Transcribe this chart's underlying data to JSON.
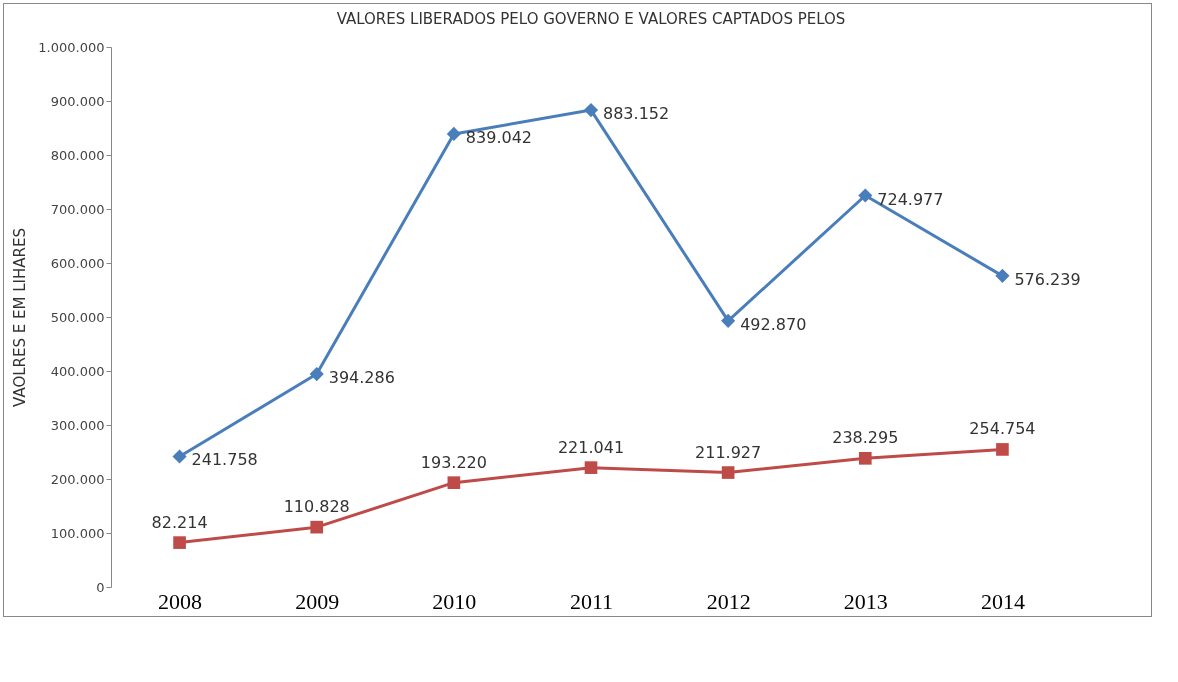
{
  "chart_data": {
    "type": "line",
    "title": "VALORES LIBERADOS PELO GOVERNO E VALORES CAPTADOS PELOS",
    "ylabel": "VAOLRES E  EM LIHARES",
    "categories": [
      "2008",
      "2009",
      "2010",
      "2011",
      "2012",
      "2013",
      "2014"
    ],
    "series": [
      {
        "color": "#4a7ebb",
        "marker": "diamond",
        "values": [
          241758,
          394286,
          839042,
          883152,
          492870,
          724977,
          576239
        ],
        "value_labels": [
          "241.758",
          "394.286",
          "839.042",
          "883.152",
          "492.870",
          "724.977",
          "576.239"
        ]
      },
      {
        "color": "#be4b48",
        "marker": "square",
        "values": [
          82214,
          110828,
          193220,
          221041,
          211927,
          238295,
          254754
        ],
        "value_labels": [
          "82.214",
          "110.828",
          "193.220",
          "221.041",
          "211.927",
          "238.295",
          "254.754"
        ]
      }
    ],
    "ylim": [
      0,
      1000000
    ],
    "yticks": [
      0,
      {
        "value": 100000,
        "label": "100.000"
      },
      {
        "value": 200000,
        "label": "200.000"
      },
      {
        "value": 300000,
        "label": "300.000"
      },
      {
        "value": 400000,
        "label": "400.000"
      },
      {
        "value": 500000,
        "label": "500.000"
      },
      {
        "value": 600000,
        "label": "600.000"
      },
      {
        "value": 700000,
        "label": "700.000"
      },
      {
        "value": 800000,
        "label": "800.000"
      },
      {
        "value": 900000,
        "label": "900.000"
      },
      {
        "value": 1000000,
        "label": "1.000.000"
      }
    ],
    "grid": false,
    "line_style": "solid"
  }
}
